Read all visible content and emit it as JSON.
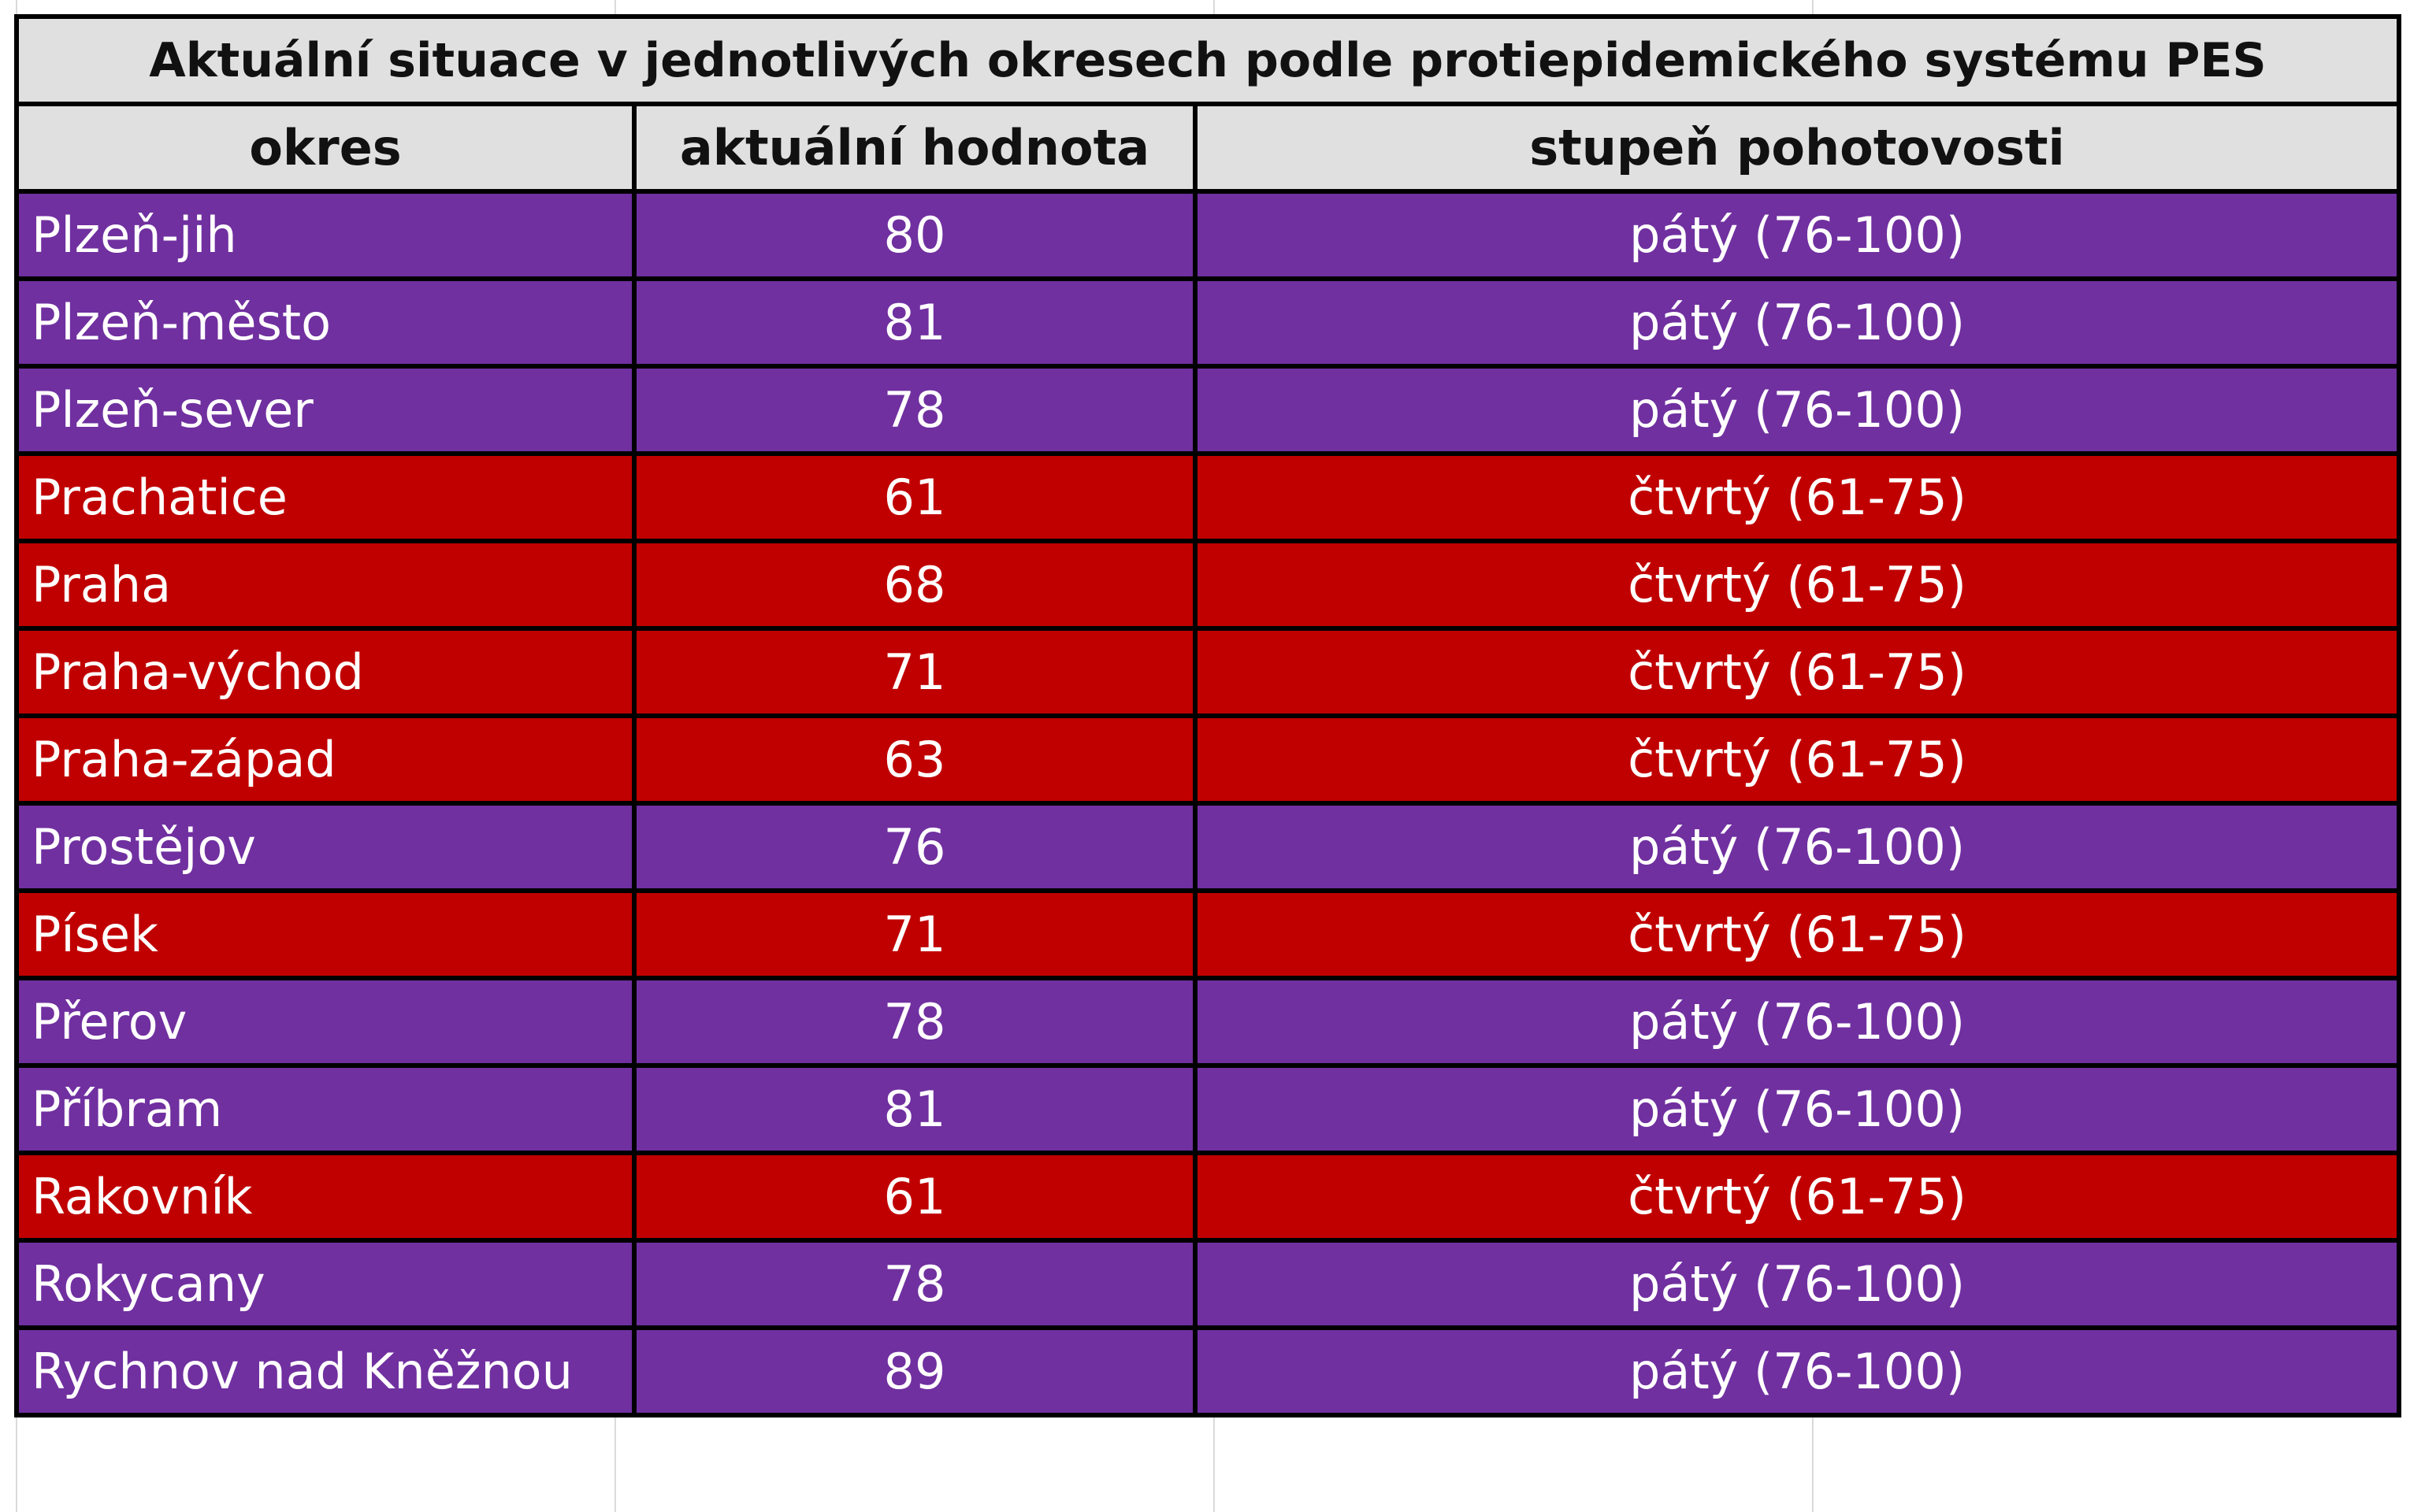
{
  "table": {
    "title": "Aktuální situace v jednotlivých okresech podle protiepidemického systému PES",
    "headers": [
      "okres",
      "aktuální hodnota",
      "stupeň pohotovosti"
    ],
    "rows": [
      [
        "Plzeň-jih",
        80,
        "pátý (76-100)"
      ],
      [
        "Plzeň-město",
        81,
        "pátý (76-100)"
      ],
      [
        "Plzeň-sever",
        78,
        "pátý (76-100)"
      ],
      [
        "Prachatice",
        61,
        "čtvrtý (61-75)"
      ],
      [
        "Praha",
        68,
        "čtvrtý (61-75)"
      ],
      [
        "Praha-východ",
        71,
        "čtvrtý (61-75)"
      ],
      [
        "Praha-západ",
        63,
        "čtvrtý (61-75)"
      ],
      [
        "Prostějov",
        76,
        "pátý (76-100)"
      ],
      [
        "Písek",
        71,
        "čtvrtý (61-75)"
      ],
      [
        "Přerov",
        78,
        "pátý (76-100)"
      ],
      [
        "Příbram",
        81,
        "pátý (76-100)"
      ],
      [
        "Rakovník",
        61,
        "čtvrtý (61-75)"
      ],
      [
        "Rokycany",
        78,
        "pátý (76-100)"
      ],
      [
        "Rychnov nad Kněžnou",
        89,
        "pátý (76-100)"
      ]
    ],
    "row_colors": [
      "#7030a0",
      "#7030a0",
      "#7030a0",
      "#c00000",
      "#c00000",
      "#c00000",
      "#c00000",
      "#7030a0",
      "#c00000",
      "#7030a0",
      "#7030a0",
      "#c00000",
      "#7030a0",
      "#7030a0"
    ],
    "header_color": "#e0e0e0"
  }
}
